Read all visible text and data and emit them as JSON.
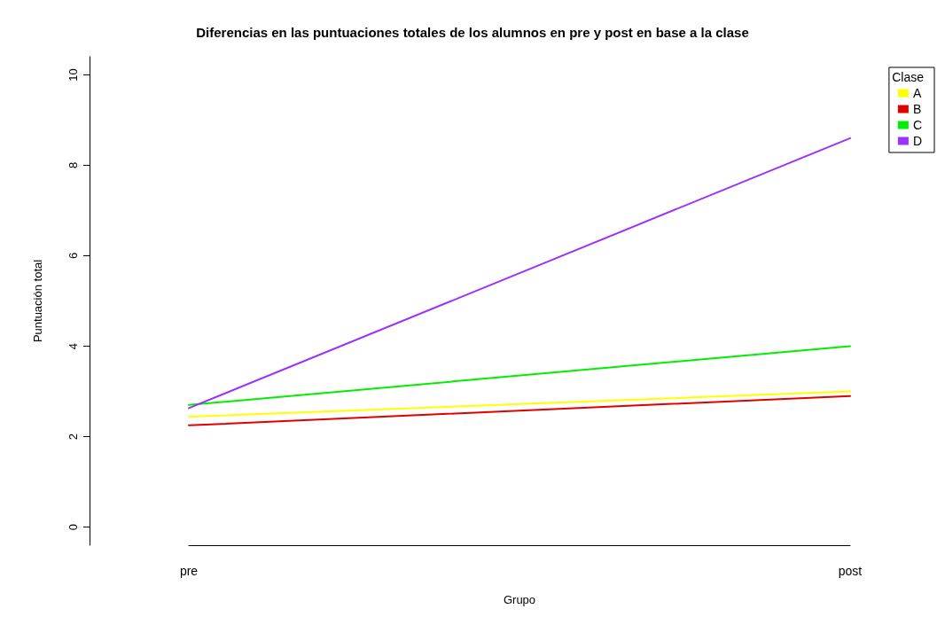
{
  "chart_data": {
    "type": "line",
    "title": "Diferencias en las puntuaciones totales de los alumnos en pre y post en base a la clase",
    "xlabel": "Grupo",
    "ylabel": "Puntuación total",
    "legend_title": "Clase",
    "categories": [
      "pre",
      "post"
    ],
    "series": [
      {
        "name": "A",
        "color": "#ffff00",
        "values": [
          2.44,
          3.0
        ]
      },
      {
        "name": "B",
        "color": "#e00000",
        "values": [
          2.25,
          2.9
        ]
      },
      {
        "name": "C",
        "color": "#00ee00",
        "values": [
          2.7,
          4.0
        ]
      },
      {
        "name": "D",
        "color": "#9b30ff",
        "values": [
          2.63,
          8.6
        ]
      }
    ],
    "ylim": [
      -0.4,
      10.4
    ],
    "yticks": [
      0,
      2,
      4,
      6,
      8,
      10
    ],
    "grid": false,
    "legend": "top right",
    "marker": "none",
    "line_style": "solid"
  }
}
